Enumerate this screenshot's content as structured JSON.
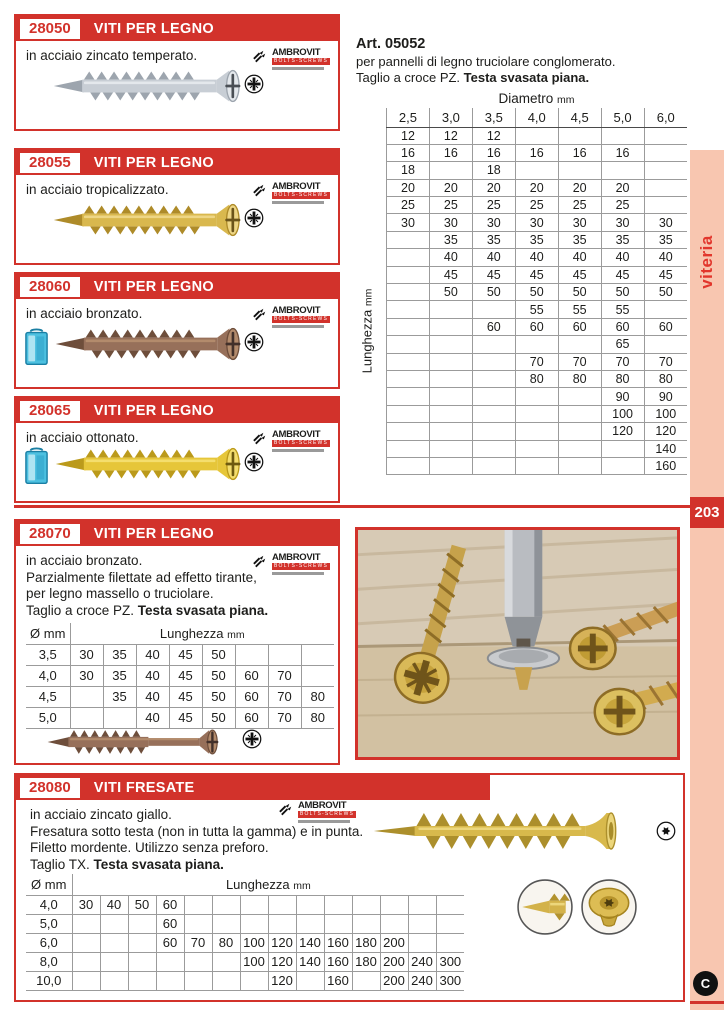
{
  "page": {
    "number": "203",
    "side_tab": "viteria",
    "footer_mark": "C"
  },
  "brand": {
    "name": "AMBROVIT",
    "sub": "BOLTS-SCREWS"
  },
  "labels": {
    "diam": "Ø mm",
    "lunghezza": "Lunghezza",
    "diametro": "Diametro",
    "unit": "mm"
  },
  "colors": {
    "red": "#d2322b",
    "strip": "#f8c6b0"
  },
  "icons": {
    "pz": "pozidriv-cross-in-circle",
    "tx": "torx-star-in-circle",
    "package": "blue-plastic-box",
    "brand_icon": "two-small-screws",
    "c_logo": "black-circle-C"
  },
  "products": {
    "p28050": {
      "code": "28050",
      "title": "VITI PER LEGNO",
      "desc": "in acciaio zincato temperato."
    },
    "p28055": {
      "code": "28055",
      "title": "VITI PER LEGNO",
      "desc": "in acciaio tropicalizzato."
    },
    "p28060": {
      "code": "28060",
      "title": "VITI PER LEGNO",
      "desc": "in acciaio bronzato."
    },
    "p28065": {
      "code": "28065",
      "title": "VITI PER LEGNO",
      "desc": "in acciaio ottonato."
    },
    "p28070": {
      "code": "28070",
      "title": "VITI PER LEGNO",
      "line1": "in acciaio bronzato.",
      "line2": "Parzialmente filettate ad effetto tirante,",
      "line3": "per legno massello o truciolare.",
      "last_normal": "Taglio a croce PZ. ",
      "last_bold": "Testa svasata piana.",
      "table_rows": [
        {
          "d": "3,5",
          "v": [
            "30",
            "35",
            "40",
            "45",
            "50",
            "",
            "",
            ""
          ]
        },
        {
          "d": "4,0",
          "v": [
            "30",
            "35",
            "40",
            "45",
            "50",
            "60",
            "70",
            ""
          ]
        },
        {
          "d": "4,5",
          "v": [
            "",
            "35",
            "40",
            "45",
            "50",
            "60",
            "70",
            "80"
          ]
        },
        {
          "d": "5,0",
          "v": [
            "",
            "",
            "40",
            "45",
            "50",
            "60",
            "70",
            "80"
          ]
        }
      ]
    },
    "p28080": {
      "code": "28080",
      "title": "VITI FRESATE",
      "line1": "in acciaio zincato giallo.",
      "line2": "Fresatura sotto testa (non in tutta la gamma) e in punta.",
      "line3": "Filetto mordente. Utilizzo senza preforo.",
      "last_normal": "Taglio TX. ",
      "last_bold": "Testa svasata piana.",
      "table_rows": [
        {
          "d": "4,0",
          "v": [
            "30",
            "40",
            "50",
            "60",
            "",
            "",
            "",
            "",
            "",
            "",
            "",
            "",
            "",
            ""
          ]
        },
        {
          "d": "5,0",
          "v": [
            "",
            "",
            "",
            "60",
            "",
            "",
            "",
            "",
            "",
            "",
            "",
            "",
            "",
            ""
          ]
        },
        {
          "d": "6,0",
          "v": [
            "",
            "",
            "",
            "60",
            "70",
            "80",
            "100",
            "120",
            "140",
            "160",
            "180",
            "200",
            "",
            ""
          ]
        },
        {
          "d": "8,0",
          "v": [
            "",
            "",
            "",
            "",
            "",
            "",
            "100",
            "120",
            "140",
            "160",
            "180",
            "200",
            "240",
            "300"
          ]
        },
        {
          "d": "10,0",
          "v": [
            "",
            "",
            "",
            "",
            "",
            "",
            "",
            "120",
            "",
            "160",
            "",
            "200",
            "240",
            "300"
          ]
        }
      ]
    }
  },
  "art_table": {
    "title": "Art. 05052",
    "line1": "per pannelli di legno truciolare conglomerato.",
    "line2_normal": "Taglio a croce PZ. ",
    "line2_bold": "Testa svasata piana.",
    "columns": [
      "2,5",
      "3,0",
      "3,5",
      "4,0",
      "4,5",
      "5,0",
      "6,0"
    ],
    "rows": [
      [
        "12",
        "12",
        "12",
        "",
        "",
        "",
        ""
      ],
      [
        "16",
        "16",
        "16",
        "16",
        "16",
        "16",
        ""
      ],
      [
        "18",
        "",
        "18",
        "",
        "",
        "",
        ""
      ],
      [
        "20",
        "20",
        "20",
        "20",
        "20",
        "20",
        ""
      ],
      [
        "25",
        "25",
        "25",
        "25",
        "25",
        "25",
        ""
      ],
      [
        "30",
        "30",
        "30",
        "30",
        "30",
        "30",
        "30"
      ],
      [
        "",
        "35",
        "35",
        "35",
        "35",
        "35",
        "35"
      ],
      [
        "",
        "40",
        "40",
        "40",
        "40",
        "40",
        "40"
      ],
      [
        "",
        "45",
        "45",
        "45",
        "45",
        "45",
        "45"
      ],
      [
        "",
        "50",
        "50",
        "50",
        "50",
        "50",
        "50"
      ],
      [
        "",
        "",
        "",
        "55",
        "55",
        "55",
        ""
      ],
      [
        "",
        "",
        "60",
        "60",
        "60",
        "60",
        "60"
      ],
      [
        "",
        "",
        "",
        "",
        "",
        "65",
        ""
      ],
      [
        "",
        "",
        "",
        "70",
        "70",
        "70",
        "70"
      ],
      [
        "",
        "",
        "",
        "80",
        "80",
        "80",
        "80"
      ],
      [
        "",
        "",
        "",
        "",
        "",
        "90",
        "90"
      ],
      [
        "",
        "",
        "",
        "",
        "",
        "100",
        "100"
      ],
      [
        "",
        "",
        "",
        "",
        "",
        "120",
        "120"
      ],
      [
        "",
        "",
        "",
        "",
        "",
        "",
        "140"
      ],
      [
        "",
        "",
        "",
        "",
        "",
        "",
        "160"
      ]
    ]
  }
}
